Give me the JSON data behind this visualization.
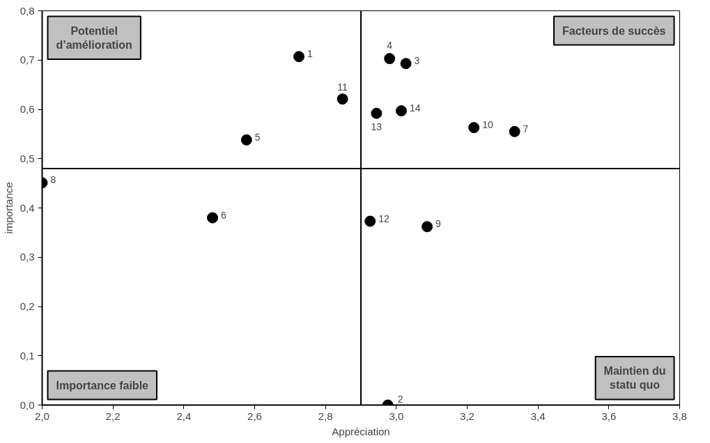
{
  "chart_data": {
    "type": "scatter",
    "xlabel": "Appréciation",
    "ylabel": "importance",
    "x": [
      2.725,
      2.976,
      3.027,
      2.981,
      2.577,
      2.481,
      3.334,
      2.0,
      3.087,
      3.219,
      2.848,
      2.926,
      2.944,
      3.014
    ],
    "series": [
      {
        "color": "#000000",
        "values": [
          0.707,
          0.0,
          0.693,
          0.703,
          0.538,
          0.38,
          0.555,
          0.451,
          0.362,
          0.563,
          0.621,
          0.373,
          0.592,
          0.597
        ]
      }
    ],
    "xlim": [
      2.0,
      3.8
    ],
    "ylim": [
      0.0,
      0.8
    ],
    "xticks": [
      {
        "value": 2.0,
        "label": "2,0"
      },
      {
        "value": 2.2,
        "label": "2,2"
      },
      {
        "value": 2.4,
        "label": "2,4"
      },
      {
        "value": 2.6,
        "label": "2,6"
      },
      {
        "value": 2.8,
        "label": "2,8"
      },
      {
        "value": 3.0,
        "label": "3,0"
      },
      {
        "value": 3.2,
        "label": "3,2"
      },
      {
        "value": 3.4,
        "label": "3,4"
      },
      {
        "value": 3.6,
        "label": "3,6"
      },
      {
        "value": 3.8,
        "label": "3,8"
      }
    ],
    "yticks": [
      {
        "value": 0.0,
        "label": "0,0"
      },
      {
        "value": 0.1,
        "label": "0,1"
      },
      {
        "value": 0.2,
        "label": "0,2"
      },
      {
        "value": 0.3,
        "label": "0,3"
      },
      {
        "value": 0.4,
        "label": "0,4"
      },
      {
        "value": 0.5,
        "label": "0,5"
      },
      {
        "value": 0.6,
        "label": "0,6"
      },
      {
        "value": 0.7,
        "label": "0,7"
      },
      {
        "value": 0.8,
        "label": "0,8"
      }
    ],
    "ref_lines": [
      {
        "axis": "x",
        "value": 2.9
      },
      {
        "axis": "y",
        "value": 0.48
      }
    ],
    "annotations": [
      "Potentiel\nd’amélioration",
      "Facteurs de succès",
      "Importance faible",
      "Maintien du\nstatu quo",
      {
        "text": "1",
        "x": 2.725,
        "y": 0.707
      },
      {
        "text": "2",
        "x": 2.976,
        "y": 0.0
      },
      {
        "text": "3",
        "x": 3.027,
        "y": 0.693
      },
      {
        "text": "4",
        "x": 2.981,
        "y": 0.703
      },
      {
        "text": "5",
        "x": 2.577,
        "y": 0.538
      },
      {
        "text": "6",
        "x": 2.481,
        "y": 0.38
      },
      {
        "text": "7",
        "x": 3.334,
        "y": 0.555
      },
      {
        "text": "8",
        "x": 2.0,
        "y": 0.451
      },
      {
        "text": "9",
        "x": 3.087,
        "y": 0.362
      },
      {
        "text": "10",
        "x": 3.219,
        "y": 0.563
      },
      {
        "text": "11",
        "x": 2.848,
        "y": 0.621
      },
      {
        "text": "12",
        "x": 2.926,
        "y": 0.373
      },
      {
        "text": "13",
        "x": 2.944,
        "y": 0.592
      },
      {
        "text": "14",
        "x": 3.014,
        "y": 0.597
      }
    ],
    "marker": "circle",
    "grid": false
  }
}
